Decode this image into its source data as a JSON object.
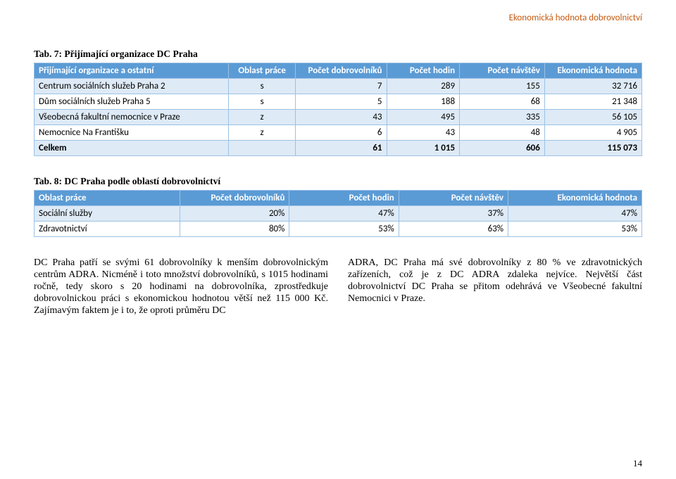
{
  "header_right": {
    "text": "Ekonomická hodnota dobrovolnictví",
    "color": "#c55a11"
  },
  "table1": {
    "caption": "Tab. 7: Přijímající organizace DC Praha",
    "columns": [
      "Přijímající organizace a ostatní",
      "Oblast práce",
      "Počet dobrovolníků",
      "Počet hodin",
      "Počet návštěv",
      "Ekonomická hodnota"
    ],
    "rows": [
      {
        "cells": [
          "Centrum sociálních služeb Praha 2",
          "s",
          "7",
          "289",
          "155",
          "32 716"
        ],
        "band": true
      },
      {
        "cells": [
          "Dům sociálních služeb Praha 5",
          "s",
          "5",
          "188",
          "68",
          "21 348"
        ],
        "band": false
      },
      {
        "cells": [
          "Všeobecná fakultní nemocnice v Praze",
          "z",
          "43",
          "495",
          "335",
          "56 105"
        ],
        "band": true
      },
      {
        "cells": [
          "Nemocnice Na Františku",
          "z",
          "6",
          "43",
          "48",
          "4 905"
        ],
        "band": false
      }
    ],
    "total": [
      "Celkem",
      "",
      "61",
      "1 015",
      "606",
      "115 073"
    ]
  },
  "table2": {
    "caption": "Tab. 8: DC Praha podle oblastí dobrovolnictví",
    "columns": [
      "Oblast práce",
      "Počet dobrovolníků",
      "Počet hodin",
      "Počet návštěv",
      "Ekonomická hodnota"
    ],
    "rows": [
      {
        "cells": [
          "Sociální služby",
          "20%",
          "47%",
          "37%",
          "47%"
        ],
        "band": true
      },
      {
        "cells": [
          "Zdravotnictví",
          "80%",
          "53%",
          "63%",
          "53%"
        ],
        "band": false
      }
    ]
  },
  "body": {
    "left": "DC Praha patří se svými 61 dobrovolníky k menším dobrovolnickým centrům ADRA. Nicméně i toto množství dobrovolníků, s 1015 hodinami ročně, tedy skoro s 20 hodinami na dobrovolníka, zprostředkuje dobrovolnickou práci s ekonomickou hodnotou větší než 115 000 Kč. Zajímavým faktem je i to, že oproti průměru DC",
    "right": "ADRA, DC Praha má své dobrovolníky z 80 % ve zdravotnických zařízeních, což je z DC ADRA zdaleka nejvíce. Největší část dobrovolnictví DC Praha se přitom odehrává ve Všeobecné fakultní Nemocnici v Praze."
  },
  "page_number": "14"
}
